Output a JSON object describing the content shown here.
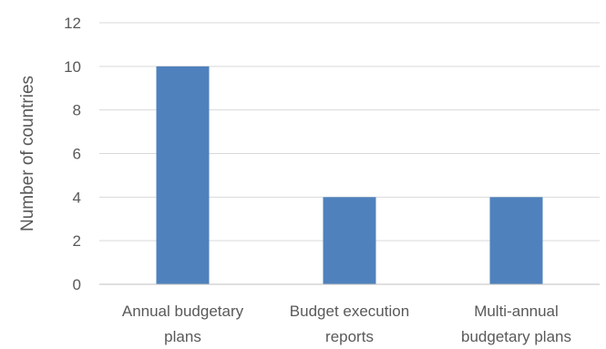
{
  "chart_data": {
    "type": "bar",
    "categories": [
      [
        "Annual budgetary",
        "plans"
      ],
      [
        "Budget execution",
        "reports"
      ],
      [
        "Multi-annual",
        "budgetary plans"
      ]
    ],
    "values": [
      10,
      4,
      4
    ],
    "ylabel": "Number of countries",
    "xlabel": "",
    "title": "",
    "ylim": [
      0,
      12
    ],
    "yticks": [
      "0",
      "2",
      "4",
      "6",
      "8",
      "10",
      "12"
    ],
    "grid": true,
    "legend": "none",
    "colors": {
      "bar": "#4f81bd",
      "grid": "#d9d9d9",
      "axis": "#bfbfbf",
      "text": "#595959"
    }
  }
}
